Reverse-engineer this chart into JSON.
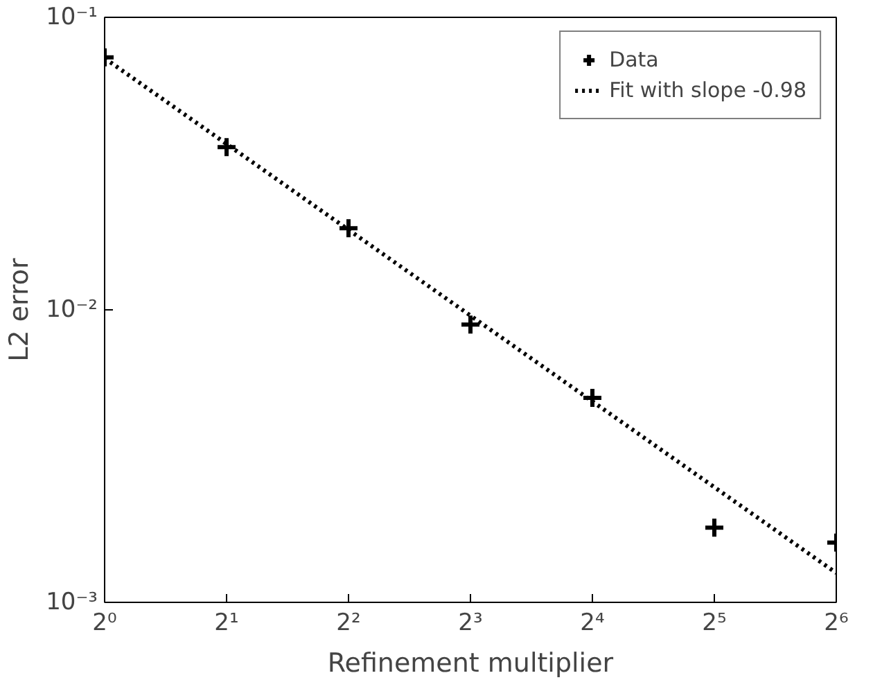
{
  "chart_data": {
    "type": "scatter",
    "xlabel": "Refinement multiplier",
    "ylabel": "L2 error",
    "log": "xy",
    "grid": false,
    "legend": "top right",
    "xlim": [
      1,
      64
    ],
    "ylim": [
      0.001,
      0.1
    ],
    "xticks": [
      {
        "value": 1,
        "label": "2⁰"
      },
      {
        "value": 2,
        "label": "2¹"
      },
      {
        "value": 4,
        "label": "2²"
      },
      {
        "value": 8,
        "label": "2³"
      },
      {
        "value": 16,
        "label": "2⁴"
      },
      {
        "value": 32,
        "label": "2⁵"
      },
      {
        "value": 64,
        "label": "2⁶"
      }
    ],
    "yticks": [
      {
        "value": 0.001,
        "label": "10⁻³"
      },
      {
        "value": 0.01,
        "label": "10⁻²"
      },
      {
        "value": 0.1,
        "label": "10⁻¹"
      }
    ],
    "series": [
      {
        "name": "Data",
        "marker": "cross",
        "color": "#000000",
        "x": [
          1,
          2,
          4,
          8,
          16,
          32,
          64
        ],
        "values": [
          0.073,
          0.036,
          0.019,
          0.0089,
          0.005,
          0.0018,
          0.0016
        ]
      },
      {
        "name": "Fit with slope -0.98",
        "type": "line",
        "line_style": "dotted",
        "marker": "none",
        "color": "#000000",
        "x": [
          1,
          64
        ],
        "values": [
          0.0725,
          0.00126
        ]
      }
    ]
  }
}
